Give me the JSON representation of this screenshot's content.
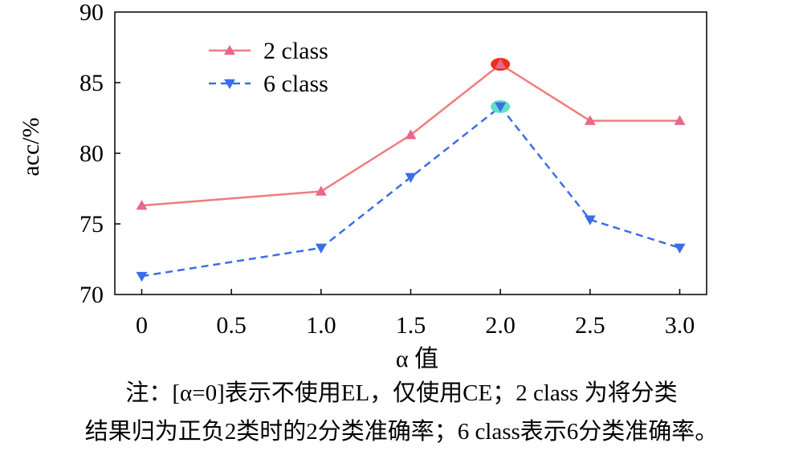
{
  "chart_data": {
    "type": "line",
    "x": [
      0,
      0.5,
      1.0,
      1.5,
      2.0,
      2.5,
      3.0
    ],
    "x_tick_labels": [
      "0",
      "0.5",
      "1.0",
      "1.5",
      "2.0",
      "2.5",
      "3.0"
    ],
    "series": [
      {
        "name": "2 class",
        "x": [
          0,
          1.0,
          1.5,
          2.0,
          2.5,
          3.0
        ],
        "values": [
          76.3,
          77.3,
          81.3,
          86.3,
          82.3,
          82.3
        ],
        "color": "#f07c7c",
        "marker_color": "#e8678a",
        "marker": "triangle-up",
        "line_style": "solid",
        "highlight_point": {
          "x": 2.0,
          "y": 86.3,
          "color": "#e8321e"
        }
      },
      {
        "name": "6 class",
        "x": [
          0,
          1.0,
          1.5,
          2.0,
          2.5,
          3.0
        ],
        "values": [
          71.3,
          73.3,
          78.3,
          83.3,
          75.3,
          73.3
        ],
        "color": "#3a6ee8",
        "marker_color": "#3a6ee8",
        "marker": "triangle-down",
        "line_style": "dashed",
        "highlight_point": {
          "x": 2.0,
          "y": 83.3,
          "color": "#5fe0c8"
        }
      }
    ],
    "y_ticks": [
      "70",
      "75",
      "80",
      "85",
      "90"
    ],
    "xlim": [
      -0.15,
      3.15
    ],
    "ylim": [
      70,
      90
    ],
    "xlabel": "α 值",
    "ylabel": "acc/%",
    "legend_position": "top-left",
    "grid": false
  },
  "note": {
    "line1": "注：[α=0]表示不使用EL，仅使用CE；2 class 为将分类",
    "line2": "结果归为正负2类时的2分类准确率；6 class表示6分类准确率。"
  }
}
